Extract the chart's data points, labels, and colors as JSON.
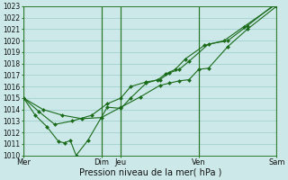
{
  "xlabel": "Pression niveau de la mer( hPa )",
  "background_color": "#cce8e8",
  "plot_bg_color": "#cce8e8",
  "grid_color": "#99cccc",
  "line_color": "#1a6b1a",
  "marker_color": "#1a6b1a",
  "ylim": [
    1010,
    1023
  ],
  "yticks": [
    1010,
    1011,
    1012,
    1013,
    1014,
    1015,
    1016,
    1017,
    1018,
    1019,
    1020,
    1021,
    1022,
    1023
  ],
  "xtick_labels": [
    "Mer",
    "Dim",
    "Jeu",
    "Ven",
    "Sam"
  ],
  "xtick_positions": [
    0,
    40,
    50,
    90,
    130
  ],
  "vline_positions": [
    0,
    40,
    50,
    90,
    130
  ],
  "series": [
    {
      "x": [
        0,
        6,
        12,
        18,
        21,
        24,
        27,
        33,
        43,
        50,
        55,
        63,
        69,
        73,
        78,
        83,
        93,
        103,
        113,
        130
      ],
      "y": [
        1015,
        1013.5,
        1012.5,
        1011.2,
        1011.1,
        1011.3,
        1010.0,
        1011.3,
        1014.2,
        1014.1,
        1015.0,
        1016.3,
        1016.6,
        1017.1,
        1017.5,
        1018.4,
        1019.6,
        1020.0,
        1021.2,
        1023.2
      ]
    },
    {
      "x": [
        0,
        10,
        20,
        30,
        40,
        50,
        60,
        70,
        75,
        80,
        85,
        90,
        95,
        105,
        115,
        130
      ],
      "y": [
        1015,
        1014.0,
        1013.5,
        1013.2,
        1013.3,
        1014.2,
        1015.1,
        1016.1,
        1016.3,
        1016.5,
        1016.6,
        1017.5,
        1017.6,
        1019.5,
        1021.0,
        1023.0
      ]
    },
    {
      "x": [
        0,
        8,
        16,
        25,
        35,
        43,
        50,
        55,
        63,
        70,
        75,
        80,
        85,
        95,
        105,
        115,
        130
      ],
      "y": [
        1015,
        1013.8,
        1012.7,
        1013.0,
        1013.5,
        1014.5,
        1015.0,
        1016.0,
        1016.4,
        1016.6,
        1017.2,
        1017.5,
        1018.2,
        1019.7,
        1020.0,
        1021.3,
        1023.3
      ]
    }
  ]
}
